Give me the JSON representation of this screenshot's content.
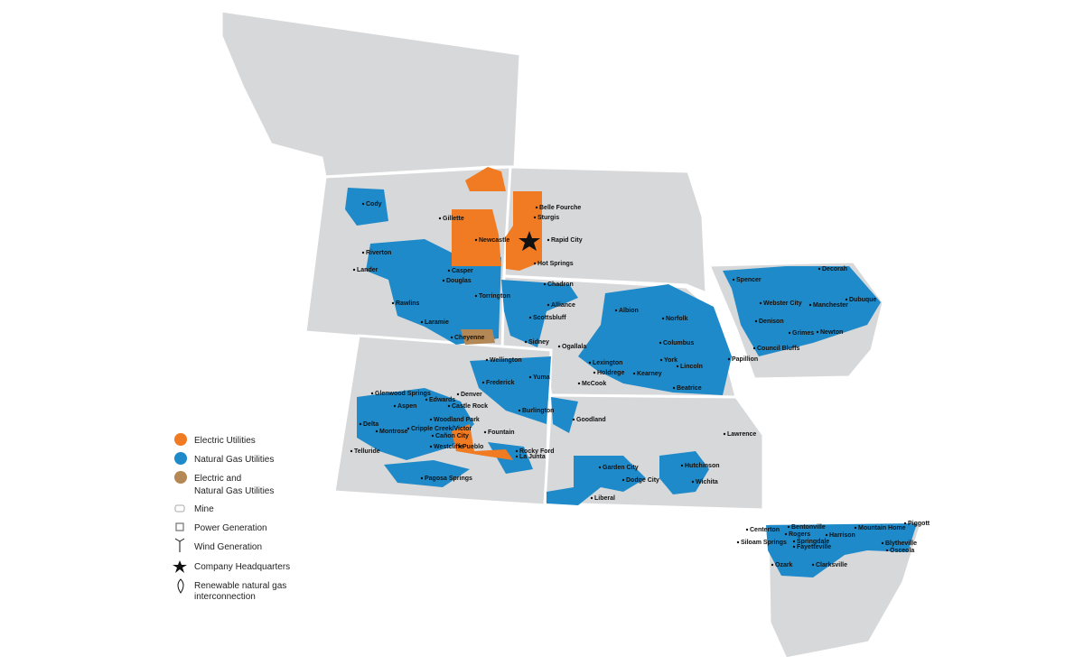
{
  "legend": {
    "electric": "Electric Utilities",
    "gas": "Natural Gas Utilities",
    "both": [
      "Electric and",
      "Natural Gas Utilities"
    ],
    "mine": "Mine",
    "power": "Power Generation",
    "wind": "Wind Generation",
    "hq": "Company Headquarters",
    "rng": [
      "Renewable natural gas",
      "interconnection"
    ]
  },
  "cities": [
    "Cody",
    "Gillette",
    "Newcastle",
    "Belle Fourche",
    "Sturgis",
    "Rapid City",
    "Hot Springs",
    "Riverton",
    "Lander",
    "Casper",
    "Douglas",
    "Torrington",
    "Chadron",
    "Alliance",
    "Scottsbluff",
    "Rawlins",
    "Laramie",
    "Cheyenne",
    "Sidney",
    "Ogallala",
    "Albion",
    "Norfolk",
    "Columbus",
    "Lexington",
    "Holdrege",
    "Kearney",
    "York",
    "Lincoln",
    "Papillion",
    "Council Bluffs",
    "Beatrice",
    "McCook",
    "Spencer",
    "Decorah",
    "Webster City",
    "Manchester",
    "Dubuque",
    "Denison",
    "Grimes",
    "Newton",
    "Wellington",
    "Frederick",
    "Yuma",
    "Denver",
    "Glenwood Springs",
    "Edwards",
    "Aspen",
    "Castle Rock",
    "Woodland Park",
    "Burlington",
    "Goodland",
    "Delta",
    "Cripple Creek/Victor",
    "Cañon City",
    "Fountain",
    "Montrose",
    "Telluride",
    "Westcliffe",
    "Pueblo",
    "Rocky Ford",
    "La Junta",
    "Lawrence",
    "Hutchinson",
    "Garden City",
    "Dodge City",
    "Wichita",
    "Pagosa Springs",
    "Liberal",
    "Centerton",
    "Bentonville",
    "Rogers",
    "Springdale",
    "Fayetteville",
    "Siloam Springs",
    "Harrison",
    "Mountain Home",
    "Piggott",
    "Blytheville",
    "Osceola",
    "Ozark",
    "Clarksville"
  ]
}
